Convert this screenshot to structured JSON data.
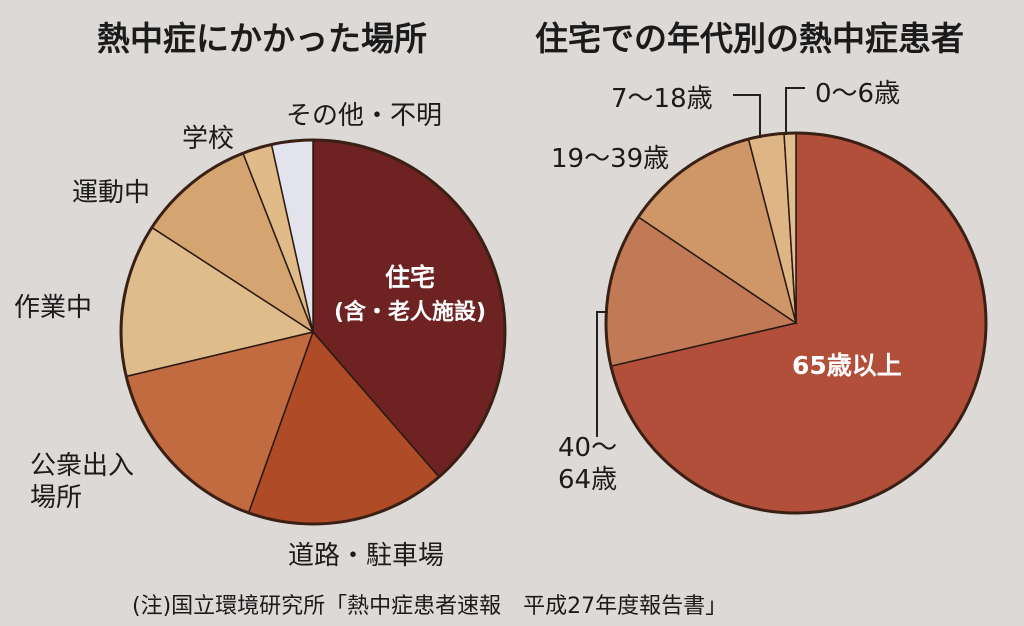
{
  "note": "(注)国立環境研究所「熱中症患者速報　平成27年度報告書」",
  "chart_data": [
    {
      "type": "pie",
      "title": "熱中症にかかった場所",
      "slices": [
        {
          "label_lines": [
            "住宅",
            "(含・老人施設)"
          ],
          "value": 39,
          "color": "#6e2322",
          "label_inside": true
        },
        {
          "label_lines": [
            "道路・駐車場"
          ],
          "value": 17,
          "color": "#af4b26"
        },
        {
          "label_lines": [
            "公衆出入",
            "場所"
          ],
          "value": 16,
          "color": "#c26a40"
        },
        {
          "label_lines": [
            "作業中"
          ],
          "value": 13,
          "color": "#dfbc8b"
        },
        {
          "label_lines": [
            "運動中"
          ],
          "value": 10,
          "color": "#d4a571"
        },
        {
          "label_lines": [
            "学校"
          ],
          "value": 2.5,
          "color": "#e0bb88"
        },
        {
          "label_lines": [
            "その他・不明"
          ],
          "value": 3.5,
          "color": "#e3e3ed"
        }
      ]
    },
    {
      "type": "pie",
      "title": "住宅での年代別の熱中症患者",
      "slices": [
        {
          "label_lines": [
            "65歳以上"
          ],
          "value": 71,
          "color": "#b24f3b",
          "label_inside": true
        },
        {
          "label_lines": [
            "40～",
            "64歳"
          ],
          "value": 13,
          "color": "#c27a56"
        },
        {
          "label_lines": [
            "19～39歳"
          ],
          "value": 11.5,
          "color": "#cf9667"
        },
        {
          "label_lines": [
            "7～18歳"
          ],
          "value": 3,
          "color": "#deb585"
        },
        {
          "label_lines": [
            "0～6歳"
          ],
          "value": 1,
          "color": "#e0be90"
        }
      ]
    }
  ]
}
